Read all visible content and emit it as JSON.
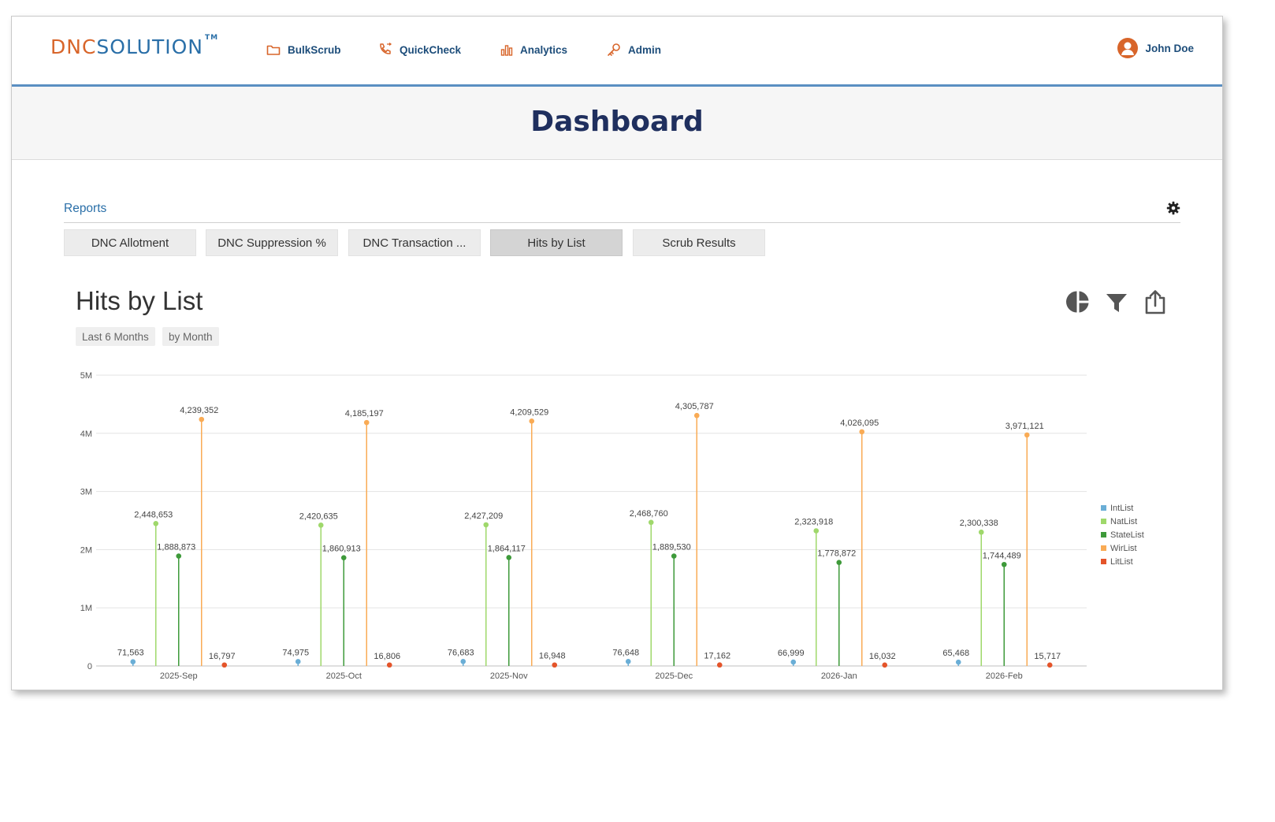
{
  "app": {
    "logo_dnc": "DNC",
    "logo_solution": "SOLUTION",
    "logo_tm": "TM"
  },
  "nav": {
    "items": [
      {
        "label": "BulkScrub",
        "icon": "folder-icon"
      },
      {
        "label": "QuickCheck",
        "icon": "phone-icon"
      },
      {
        "label": "Analytics",
        "icon": "bar-chart-icon"
      },
      {
        "label": "Admin",
        "icon": "key-icon"
      }
    ],
    "user_name": "John Doe"
  },
  "page": {
    "title": "Dashboard"
  },
  "reports": {
    "label": "Reports",
    "tabs": [
      {
        "label": "DNC Allotment",
        "active": false
      },
      {
        "label": "DNC Suppression %",
        "active": false
      },
      {
        "label": "DNC Transaction ...",
        "active": false
      },
      {
        "label": "Hits by List",
        "active": true
      },
      {
        "label": "Scrub Results",
        "active": false
      }
    ]
  },
  "panel": {
    "title": "Hits by List",
    "chips": [
      "Last 6 Months",
      "by Month"
    ]
  },
  "colors": {
    "accent": "#2a6fa8",
    "brand_orange": "#d8652a",
    "IntList": "#6aaed6",
    "NatList": "#9fd86b",
    "StateList": "#3e9a3a",
    "WirList": "#f9ab55",
    "LitList": "#e4542a"
  },
  "chart_data": {
    "type": "lollipop",
    "title": "",
    "xlabel": "",
    "ylabel": "",
    "categories": [
      "2025-Sep",
      "2025-Oct",
      "2025-Nov",
      "2025-Dec",
      "2026-Jan",
      "2026-Feb"
    ],
    "ylim": [
      0,
      5000000
    ],
    "yticks": [
      {
        "value": 0,
        "label": "0"
      },
      {
        "value": 1000000,
        "label": "1M"
      },
      {
        "value": 2000000,
        "label": "2M"
      },
      {
        "value": 3000000,
        "label": "3M"
      },
      {
        "value": 4000000,
        "label": "4M"
      },
      {
        "value": 5000000,
        "label": "5M"
      }
    ],
    "grid": true,
    "legend_position": "right",
    "series": [
      {
        "name": "IntList",
        "values": [
          71563,
          74975,
          76683,
          76648,
          66999,
          65468
        ],
        "labels": [
          "71,563",
          "74,975",
          "76,683",
          "76,648",
          "66,999",
          "65,468"
        ]
      },
      {
        "name": "NatList",
        "values": [
          2448653,
          2420635,
          2427209,
          2468760,
          2323918,
          2300338
        ],
        "labels": [
          "2,448,653",
          "2,420,635",
          "2,427,209",
          "2,468,760",
          "2,323,918",
          "2,300,338"
        ]
      },
      {
        "name": "StateList",
        "values": [
          1888873,
          1860913,
          1864117,
          1889530,
          1778872,
          1744489
        ],
        "labels": [
          "1,888,873",
          "1,860,913",
          "1,864,117",
          "1,889,530",
          "1,778,872",
          "1,744,489"
        ]
      },
      {
        "name": "WirList",
        "values": [
          4239352,
          4185197,
          4209529,
          4305787,
          4026095,
          3971121
        ],
        "labels": [
          "4,239,352",
          "4,185,197",
          "4,209,529",
          "4,305,787",
          "4,026,095",
          "3,971,121"
        ]
      },
      {
        "name": "LitList",
        "values": [
          16797,
          16806,
          16948,
          17162,
          16032,
          15717
        ],
        "labels": [
          "16,797",
          "16,806",
          "16,948",
          "17,162",
          "16,032",
          "15,717"
        ]
      }
    ]
  }
}
